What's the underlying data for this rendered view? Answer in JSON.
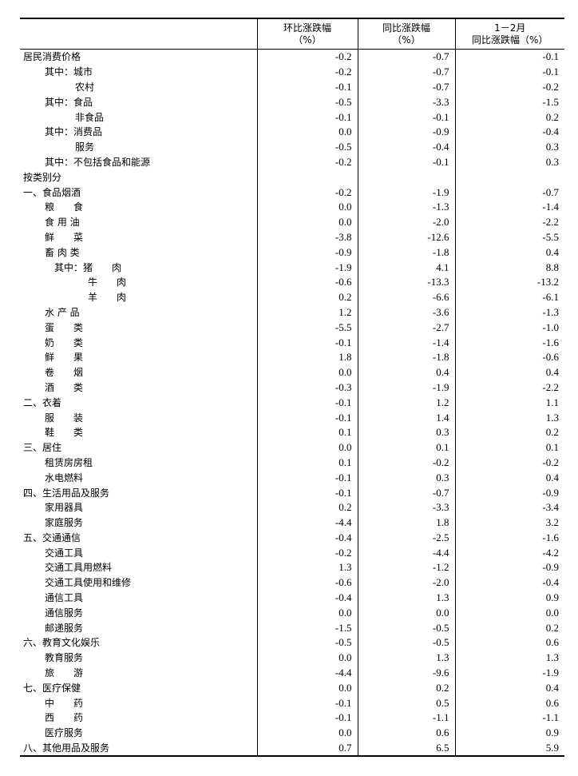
{
  "header": {
    "col1": [
      "环比涨跌幅",
      "（%）"
    ],
    "col2": [
      "同比涨跌幅",
      "（%）"
    ],
    "col3": [
      "1－2月",
      "同比涨跌幅（%）"
    ]
  },
  "rows": [
    {
      "label": "居民消费价格",
      "level": 0,
      "v": [
        "-0.2",
        "-0.7",
        "-0.1"
      ]
    },
    {
      "label": "其中：城市",
      "level": 1,
      "v": [
        "-0.2",
        "-0.7",
        "-0.1"
      ]
    },
    {
      "label": "农村",
      "level": 2,
      "v": [
        "-0.1",
        "-0.7",
        "-0.2"
      ]
    },
    {
      "label": "其中：食品",
      "level": 1,
      "v": [
        "-0.5",
        "-3.3",
        "-1.5"
      ]
    },
    {
      "label": "非食品",
      "level": 2,
      "v": [
        "-0.1",
        "-0.1",
        "0.2"
      ]
    },
    {
      "label": "其中：消费品",
      "level": 1,
      "v": [
        "0.0",
        "-0.9",
        "-0.4"
      ]
    },
    {
      "label": "服务",
      "level": 2,
      "v": [
        "-0.5",
        "-0.4",
        "0.3"
      ]
    },
    {
      "label": "其中：不包括食品和能源",
      "level": 1,
      "v": [
        "-0.2",
        "-0.1",
        "0.3"
      ]
    },
    {
      "label": "按类别分",
      "level": 0,
      "v": [
        "",
        "",
        ""
      ]
    },
    {
      "label": "一、食品烟酒",
      "level": 0,
      "v": [
        "-0.2",
        "-1.9",
        "-0.7"
      ]
    },
    {
      "label": "粮　　食",
      "level": 1,
      "v": [
        "0.0",
        "-1.3",
        "-1.4"
      ]
    },
    {
      "label": "食 用 油",
      "level": 1,
      "v": [
        "0.0",
        "-2.0",
        "-2.2"
      ]
    },
    {
      "label": "鲜　　菜",
      "level": 1,
      "v": [
        "-3.8",
        "-12.6",
        "-5.5"
      ]
    },
    {
      "label": "畜 肉 类",
      "level": 1,
      "v": [
        "-0.9",
        "-1.8",
        "0.4"
      ]
    },
    {
      "label": "其中：猪　　肉",
      "level": 3,
      "v": [
        "-1.9",
        "4.1",
        "8.8"
      ]
    },
    {
      "label": "牛　　肉",
      "level": 4,
      "v": [
        "-0.6",
        "-13.3",
        "-13.2"
      ]
    },
    {
      "label": "羊　　肉",
      "level": 4,
      "v": [
        "0.2",
        "-6.6",
        "-6.1"
      ]
    },
    {
      "label": "水 产 品",
      "level": 1,
      "v": [
        "1.2",
        "-3.6",
        "-1.3"
      ]
    },
    {
      "label": "蛋　　类",
      "level": 1,
      "v": [
        "-5.5",
        "-2.7",
        "-1.0"
      ]
    },
    {
      "label": "奶　　类",
      "level": 1,
      "v": [
        "-0.1",
        "-1.4",
        "-1.6"
      ]
    },
    {
      "label": "鲜　　果",
      "level": 1,
      "v": [
        "1.8",
        "-1.8",
        "-0.6"
      ]
    },
    {
      "label": "卷　　烟",
      "level": 1,
      "v": [
        "0.0",
        "0.4",
        "0.4"
      ]
    },
    {
      "label": "酒　　类",
      "level": 1,
      "v": [
        "-0.3",
        "-1.9",
        "-2.2"
      ]
    },
    {
      "label": "二、衣着",
      "level": 0,
      "v": [
        "-0.1",
        "1.2",
        "1.1"
      ]
    },
    {
      "label": "服　　装",
      "level": 1,
      "v": [
        "-0.1",
        "1.4",
        "1.3"
      ]
    },
    {
      "label": "鞋　　类",
      "level": 1,
      "v": [
        "0.1",
        "0.3",
        "0.2"
      ]
    },
    {
      "label": "三、居住",
      "level": 0,
      "v": [
        "0.0",
        "0.1",
        "0.1"
      ]
    },
    {
      "label": "租赁房房租",
      "level": 1,
      "v": [
        "0.1",
        "-0.2",
        "-0.2"
      ]
    },
    {
      "label": "水电燃料",
      "level": 1,
      "v": [
        "-0.1",
        "0.3",
        "0.4"
      ]
    },
    {
      "label": "四、生活用品及服务",
      "level": 0,
      "v": [
        "-0.1",
        "-0.7",
        "-0.9"
      ]
    },
    {
      "label": "家用器具",
      "level": 1,
      "v": [
        "0.2",
        "-3.3",
        "-3.4"
      ]
    },
    {
      "label": "家庭服务",
      "level": 1,
      "v": [
        "-4.4",
        "1.8",
        "3.2"
      ]
    },
    {
      "label": "五、交通通信",
      "level": 0,
      "v": [
        "-0.4",
        "-2.5",
        "-1.6"
      ]
    },
    {
      "label": "交通工具",
      "level": 1,
      "v": [
        "-0.2",
        "-4.4",
        "-4.2"
      ]
    },
    {
      "label": "交通工具用燃料",
      "level": 1,
      "v": [
        "1.3",
        "-1.2",
        "-0.9"
      ]
    },
    {
      "label": "交通工具使用和维修",
      "level": 1,
      "v": [
        "-0.6",
        "-2.0",
        "-0.4"
      ]
    },
    {
      "label": "通信工具",
      "level": 1,
      "v": [
        "-0.4",
        "1.3",
        "0.9"
      ]
    },
    {
      "label": "通信服务",
      "level": 1,
      "v": [
        "0.0",
        "0.0",
        "0.0"
      ]
    },
    {
      "label": "邮递服务",
      "level": 1,
      "v": [
        "-1.5",
        "-0.5",
        "0.2"
      ]
    },
    {
      "label": "六、教育文化娱乐",
      "level": 0,
      "v": [
        "-0.5",
        "-0.5",
        "0.6"
      ]
    },
    {
      "label": "教育服务",
      "level": 1,
      "v": [
        "0.0",
        "1.3",
        "1.3"
      ]
    },
    {
      "label": "旅　　游",
      "level": 1,
      "v": [
        "-4.4",
        "-9.6",
        "-1.9"
      ]
    },
    {
      "label": "七、医疗保健",
      "level": 0,
      "v": [
        "0.0",
        "0.2",
        "0.4"
      ]
    },
    {
      "label": "中　　药",
      "level": 1,
      "v": [
        "-0.1",
        "0.5",
        "0.6"
      ]
    },
    {
      "label": "西　　药",
      "level": 1,
      "v": [
        "-0.1",
        "-1.1",
        "-1.1"
      ]
    },
    {
      "label": "医疗服务",
      "level": 1,
      "v": [
        "0.0",
        "0.6",
        "0.9"
      ]
    },
    {
      "label": "八、其他用品及服务",
      "level": 0,
      "v": [
        "0.7",
        "6.5",
        "5.9"
      ]
    }
  ]
}
